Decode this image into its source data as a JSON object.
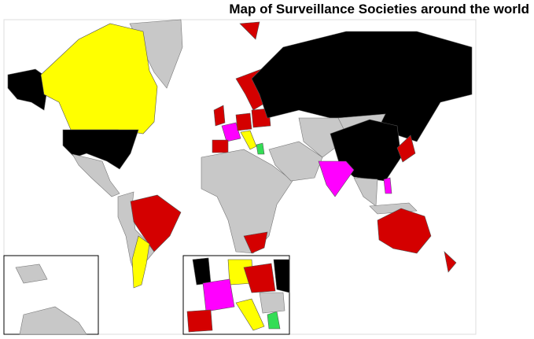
{
  "title": "Map of Surveillance Societies around the world"
}
